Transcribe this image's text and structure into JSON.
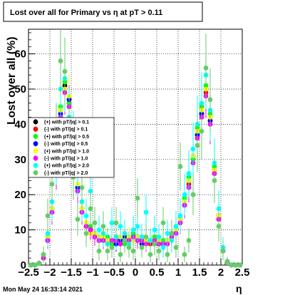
{
  "footer_timestamp": "Mon May 24 16:33:14 2021",
  "chart_data": {
    "type": "scatter",
    "title": "Lost over all for Primary vs   η at pT > 0.11",
    "xlabel": "η",
    "ylabel": "Lost over all (%)",
    "xlim": [
      -2.5,
      2.5
    ],
    "ylim": [
      0,
      67
    ],
    "xticks": [
      -2.5,
      -2,
      -1.5,
      -1,
      -0.5,
      0,
      0.5,
      1,
      1.5,
      2,
      2.5
    ],
    "xtick_labels": [
      "−2.5",
      "−2",
      "−1.5",
      "−1",
      "−0.5",
      "0",
      "0.5",
      "1",
      "1.5",
      "2",
      "2.5"
    ],
    "yticks": [
      0,
      10,
      20,
      30,
      40,
      50,
      60
    ],
    "ytick_labels": [
      "0",
      "10",
      "20",
      "30",
      "40",
      "50",
      "60"
    ],
    "grid": true,
    "legend_position": "middle-left",
    "series": [
      {
        "name": "(+) with pT/|q| > 0.1",
        "color": "#000000",
        "x": [
          -2.45,
          -2.35,
          -2.25,
          -2.15,
          -2.05,
          -1.95,
          -1.85,
          -1.75,
          -1.65,
          -1.55,
          -1.45,
          -1.35,
          -1.25,
          -1.15,
          -1.05,
          -0.95,
          -0.85,
          -0.75,
          -0.65,
          -0.55,
          -0.45,
          -0.35,
          -0.25,
          -0.15,
          -0.05,
          0.05,
          0.15,
          0.25,
          0.35,
          0.45,
          0.55,
          0.65,
          0.75,
          0.85,
          0.95,
          1.05,
          1.15,
          1.25,
          1.35,
          1.45,
          1.55,
          1.65,
          1.75,
          1.85,
          1.95,
          2.05,
          2.15,
          2.25,
          2.35,
          2.45
        ],
        "y": [
          0,
          0,
          0.5,
          2,
          8,
          16,
          27,
          44,
          51,
          47,
          33,
          22,
          16,
          12,
          10,
          9,
          8,
          7,
          7,
          7,
          7,
          7,
          7,
          8,
          8,
          8,
          7,
          7,
          7,
          7,
          6,
          6,
          7,
          8,
          10,
          13,
          18,
          24,
          31,
          38,
          44,
          50,
          42,
          27,
          14,
          4,
          1,
          0,
          0,
          0
        ]
      },
      {
        "name": "(-) with pT/|q| > 0.1",
        "color": "#ff0000",
        "x": [
          -2.45,
          -2.35,
          -2.25,
          -2.15,
          -2.05,
          -1.95,
          -1.85,
          -1.75,
          -1.65,
          -1.55,
          -1.45,
          -1.35,
          -1.25,
          -1.15,
          -1.05,
          -0.95,
          -0.85,
          -0.75,
          -0.65,
          -0.55,
          -0.45,
          -0.35,
          -0.25,
          -0.15,
          -0.05,
          0.05,
          0.15,
          0.25,
          0.35,
          0.45,
          0.55,
          0.65,
          0.75,
          0.85,
          0.95,
          1.05,
          1.15,
          1.25,
          1.35,
          1.45,
          1.55,
          1.65,
          1.75,
          1.85,
          1.95,
          2.05,
          2.15,
          2.25,
          2.35,
          2.45
        ],
        "y": [
          0,
          0,
          0.5,
          2,
          7,
          15,
          26,
          42,
          50,
          46,
          32,
          21,
          15,
          11,
          10,
          8,
          8,
          7,
          7,
          6,
          7,
          7,
          7,
          7,
          8,
          8,
          7,
          7,
          6,
          7,
          6,
          6,
          7,
          8,
          10,
          12,
          17,
          23,
          30,
          37,
          43,
          49,
          41,
          26,
          13,
          4,
          1,
          0,
          0,
          0
        ]
      },
      {
        "name": "(+) with pT/|q| > 0.5",
        "color": "#00ff00",
        "x": [
          -2.45,
          -2.35,
          -2.25,
          -2.15,
          -2.05,
          -1.95,
          -1.85,
          -1.75,
          -1.65,
          -1.55,
          -1.45,
          -1.35,
          -1.25,
          -1.15,
          -1.05,
          -0.95,
          -0.85,
          -0.75,
          -0.65,
          -0.55,
          -0.45,
          -0.35,
          -0.25,
          -0.15,
          -0.05,
          0.05,
          0.15,
          0.25,
          0.35,
          0.45,
          0.55,
          0.65,
          0.75,
          0.85,
          0.95,
          1.05,
          1.15,
          1.25,
          1.35,
          1.45,
          1.55,
          1.65,
          1.75,
          1.85,
          1.95,
          2.05,
          2.15,
          2.25,
          2.35,
          2.45
        ],
        "y": [
          0,
          0,
          0.5,
          2,
          8,
          15,
          28,
          45,
          52,
          46,
          34,
          21,
          16,
          12,
          11,
          9,
          8,
          7,
          8,
          6,
          8,
          7,
          6,
          8,
          9,
          7,
          8,
          6,
          7,
          8,
          6,
          7,
          6,
          8,
          11,
          12,
          19,
          25,
          30,
          39,
          45,
          51,
          43,
          28,
          13,
          4,
          1,
          0,
          0,
          0
        ]
      },
      {
        "name": "(-) with pT/|q| > 0.5",
        "color": "#0000ff",
        "x": [
          -2.45,
          -2.35,
          -2.25,
          -2.15,
          -2.05,
          -1.95,
          -1.85,
          -1.75,
          -1.65,
          -1.55,
          -1.45,
          -1.35,
          -1.25,
          -1.15,
          -1.05,
          -0.95,
          -0.85,
          -0.75,
          -0.65,
          -0.55,
          -0.45,
          -0.35,
          -0.25,
          -0.15,
          -0.05,
          0.05,
          0.15,
          0.25,
          0.35,
          0.45,
          0.55,
          0.65,
          0.75,
          0.85,
          0.95,
          1.05,
          1.15,
          1.25,
          1.35,
          1.45,
          1.55,
          1.65,
          1.75,
          1.85,
          1.95,
          2.05,
          2.15,
          2.25,
          2.35,
          2.45
        ],
        "y": [
          0,
          0,
          0.5,
          2,
          7,
          16,
          26,
          43,
          50,
          47,
          32,
          22,
          15,
          11,
          10,
          9,
          7,
          7,
          7,
          7,
          6,
          7,
          8,
          7,
          8,
          8,
          6,
          7,
          7,
          6,
          6,
          6,
          7,
          9,
          10,
          13,
          17,
          24,
          31,
          37,
          43,
          50,
          41,
          27,
          14,
          4,
          1,
          0,
          0,
          0
        ]
      },
      {
        "name": "(+) with pT/|q| > 1.0",
        "color": "#ffff00",
        "x": [
          -2.45,
          -2.35,
          -2.25,
          -2.15,
          -2.05,
          -1.95,
          -1.85,
          -1.75,
          -1.65,
          -1.55,
          -1.45,
          -1.35,
          -1.25,
          -1.15,
          -1.05,
          -0.95,
          -0.85,
          -0.75,
          -0.65,
          -0.55,
          -0.45,
          -0.35,
          -0.25,
          -0.15,
          -0.05,
          0.05,
          0.15,
          0.25,
          0.35,
          0.45,
          0.55,
          0.65,
          0.75,
          0.85,
          0.95,
          1.05,
          1.15,
          1.25,
          1.35,
          1.45,
          1.55,
          1.65,
          1.75,
          1.85,
          1.95,
          2.05,
          2.15,
          2.25,
          2.35,
          2.45
        ],
        "y": [
          0,
          0,
          0.5,
          2,
          8,
          16,
          27,
          44,
          50,
          48,
          33,
          23,
          16,
          12,
          9,
          9,
          8,
          8,
          7,
          7,
          7,
          8,
          7,
          8,
          7,
          8,
          7,
          7,
          7,
          7,
          7,
          6,
          7,
          8,
          10,
          13,
          18,
          24,
          31,
          38,
          44,
          50,
          42,
          27,
          14,
          4,
          1,
          0,
          0,
          0
        ]
      },
      {
        "name": "(-) with pT/|q| > 1.0",
        "color": "#ff00ff",
        "x": [
          -2.45,
          -2.35,
          -2.25,
          -2.15,
          -2.05,
          -1.95,
          -1.85,
          -1.75,
          -1.65,
          -1.55,
          -1.45,
          -1.35,
          -1.25,
          -1.15,
          -1.05,
          -0.95,
          -0.85,
          -0.75,
          -0.65,
          -0.55,
          -0.45,
          -0.35,
          -0.25,
          -0.15,
          -0.05,
          0.05,
          0.15,
          0.25,
          0.35,
          0.45,
          0.55,
          0.65,
          0.75,
          0.85,
          0.95,
          1.05,
          1.15,
          1.25,
          1.35,
          1.45,
          1.55,
          1.65,
          1.75,
          1.85,
          1.95,
          2.05,
          2.15,
          2.25,
          2.35,
          2.45
        ],
        "y": [
          0,
          0,
          0.5,
          2,
          7,
          15,
          26,
          42,
          49,
          45,
          32,
          21,
          15,
          11,
          10,
          8,
          7,
          7,
          6,
          7,
          7,
          6,
          7,
          7,
          8,
          7,
          7,
          6,
          7,
          7,
          6,
          6,
          6,
          8,
          9,
          12,
          17,
          22,
          29,
          36,
          42,
          48,
          40,
          26,
          13,
          4,
          1,
          0,
          0,
          0
        ]
      },
      {
        "name": "(+) with pT/|q| > 2.0",
        "color": "#00ffff",
        "x": [
          -2.45,
          -2.35,
          -2.25,
          -2.15,
          -2.05,
          -1.95,
          -1.85,
          -1.75,
          -1.65,
          -1.55,
          -1.45,
          -1.35,
          -1.25,
          -1.15,
          -1.05,
          -0.95,
          -0.85,
          -0.75,
          -0.65,
          -0.55,
          -0.45,
          -0.35,
          -0.25,
          -0.15,
          -0.05,
          0.05,
          0.15,
          0.25,
          0.35,
          0.45,
          0.55,
          0.65,
          0.75,
          0.85,
          0.95,
          1.05,
          1.15,
          1.25,
          1.35,
          1.45,
          1.55,
          1.65,
          1.75,
          1.85,
          1.95,
          2.05,
          2.15,
          2.25,
          2.35,
          2.45
        ],
        "y": [
          0,
          0,
          0.5,
          3,
          9,
          18,
          30,
          50,
          53,
          42,
          36,
          26,
          18,
          14,
          21,
          12,
          10,
          9,
          6,
          12,
          8,
          11,
          9,
          6,
          10,
          11,
          8,
          15,
          7,
          10,
          8,
          5,
          9,
          7,
          11,
          14,
          20,
          26,
          33,
          40,
          46,
          54,
          44,
          29,
          16,
          5,
          1,
          0,
          0,
          0
        ]
      },
      {
        "name": "(-) with pT/|q| > 2.0",
        "color": "#66cc66",
        "x": [
          -2.45,
          -2.35,
          -2.25,
          -2.15,
          -2.05,
          -1.95,
          -1.85,
          -1.75,
          -1.65,
          -1.55,
          -1.45,
          -1.35,
          -1.25,
          -1.15,
          -1.05,
          -0.95,
          -0.85,
          -0.75,
          -0.65,
          -0.55,
          -0.45,
          -0.35,
          -0.25,
          -0.15,
          -0.05,
          0.05,
          0.15,
          0.25,
          0.35,
          0.45,
          0.55,
          0.65,
          0.75,
          0.85,
          0.95,
          1.05,
          1.15,
          1.25,
          1.35,
          1.45,
          1.55,
          1.65,
          1.75,
          1.85,
          1.95,
          2.05,
          2.15,
          2.25,
          2.35,
          2.45
        ],
        "y": [
          0,
          0,
          0.5,
          3,
          14,
          23,
          38,
          58,
          55,
          40,
          25,
          13,
          22,
          9,
          16,
          12,
          4,
          11,
          4,
          5,
          12,
          3,
          7,
          5,
          4,
          19,
          5,
          8,
          3,
          6,
          4,
          12,
          3,
          9,
          5,
          28,
          3,
          7,
          20,
          34,
          38,
          56,
          47,
          24,
          11,
          4,
          1,
          0,
          0,
          0
        ]
      }
    ]
  }
}
